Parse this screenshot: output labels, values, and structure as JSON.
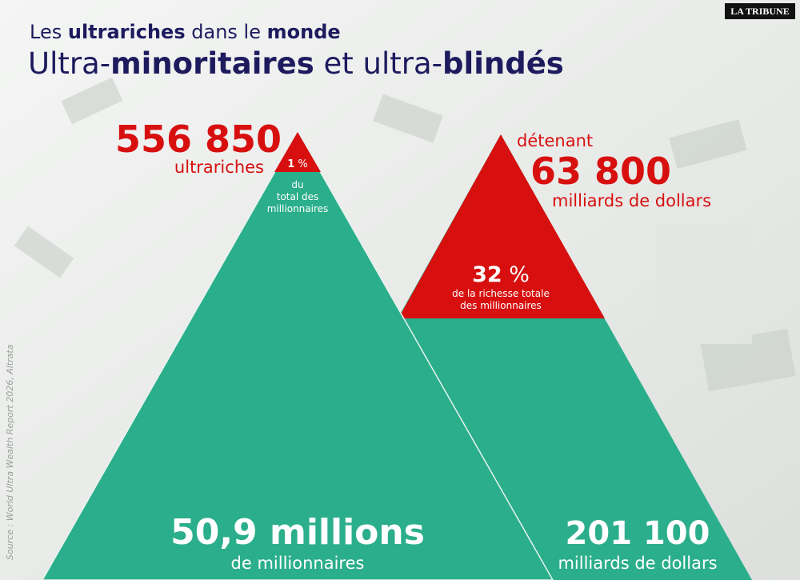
{
  "brand": "LA TRIBUNE",
  "header": {
    "subtitle": [
      "Les ",
      "ultrariches",
      " dans le ",
      "monde"
    ],
    "title": [
      "Ultra-",
      "minoritaires",
      " et ultra-",
      "blindés"
    ]
  },
  "left_pyramid": {
    "top_number": "556 850",
    "top_label": "ultrariches",
    "share_value": "1",
    "share_unit": " %",
    "share_caption": [
      "du",
      "total des",
      "millionnaires"
    ],
    "bottom_number": "50,9 millions",
    "bottom_label": "de millionnaires"
  },
  "right_pyramid": {
    "top_intro": "détenant",
    "top_number": "63 800",
    "top_label": "milliards de dollars",
    "share_value": "32",
    "share_unit": " %",
    "share_caption": [
      "de la richesse totale",
      "des millionnaires"
    ],
    "bottom_number": "201 100",
    "bottom_label": "milliards de dollars"
  },
  "source": "Source : World Ultra Wealth Report 2026, Altrata"
}
